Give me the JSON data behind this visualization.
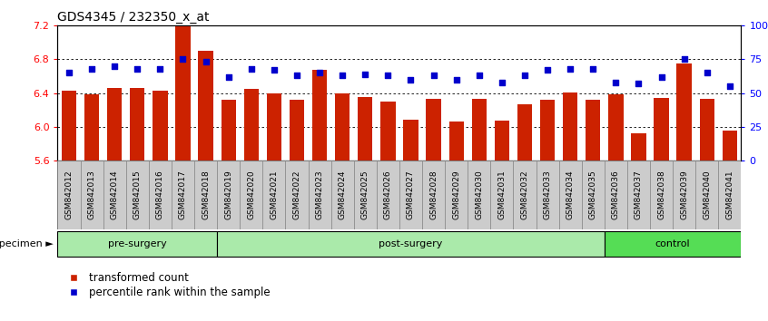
{
  "title": "GDS4345 / 232350_x_at",
  "categories": [
    "GSM842012",
    "GSM842013",
    "GSM842014",
    "GSM842015",
    "GSM842016",
    "GSM842017",
    "GSM842018",
    "GSM842019",
    "GSM842020",
    "GSM842021",
    "GSM842022",
    "GSM842023",
    "GSM842024",
    "GSM842025",
    "GSM842026",
    "GSM842027",
    "GSM842028",
    "GSM842029",
    "GSM842030",
    "GSM842031",
    "GSM842032",
    "GSM842033",
    "GSM842034",
    "GSM842035",
    "GSM842036",
    "GSM842037",
    "GSM842038",
    "GSM842039",
    "GSM842040",
    "GSM842041"
  ],
  "bar_values": [
    6.43,
    6.39,
    6.46,
    6.46,
    6.43,
    7.2,
    6.9,
    6.32,
    6.45,
    6.4,
    6.32,
    6.68,
    6.4,
    6.35,
    6.3,
    6.08,
    6.33,
    6.06,
    6.33,
    6.07,
    6.27,
    6.32,
    6.41,
    6.32,
    6.39,
    5.92,
    6.34,
    6.75,
    6.33,
    5.96
  ],
  "percentile_values": [
    65,
    68,
    70,
    68,
    68,
    75,
    73,
    62,
    68,
    67,
    63,
    65,
    63,
    64,
    63,
    60,
    63,
    60,
    63,
    58,
    63,
    67,
    68,
    68,
    58,
    57,
    62,
    75,
    65,
    55
  ],
  "bar_color": "#cc2200",
  "dot_color": "#0000cc",
  "ylim_left": [
    5.6,
    7.2
  ],
  "ylim_right": [
    0,
    100
  ],
  "yticks_left": [
    5.6,
    6.0,
    6.4,
    6.8,
    7.2
  ],
  "yticks_right": [
    0,
    25,
    50,
    75,
    100
  ],
  "ytick_labels_right": [
    "0",
    "25",
    "50",
    "75",
    "100%"
  ],
  "group_configs": [
    {
      "label": "pre-surgery",
      "start": 0,
      "end": 13,
      "color": "#ccf5cc"
    },
    {
      "label": "post-surgery",
      "start": 13,
      "end": 24,
      "color": "#ccf5cc"
    },
    {
      "label": "control",
      "start": 24,
      "end": 30,
      "color": "#66dd66"
    }
  ],
  "specimen_label": "specimen",
  "background_color": "#ffffff",
  "title_fontsize": 10,
  "tick_fontsize": 6.5,
  "label_band_color": "#cccccc",
  "label_band_border_color": "#888888"
}
